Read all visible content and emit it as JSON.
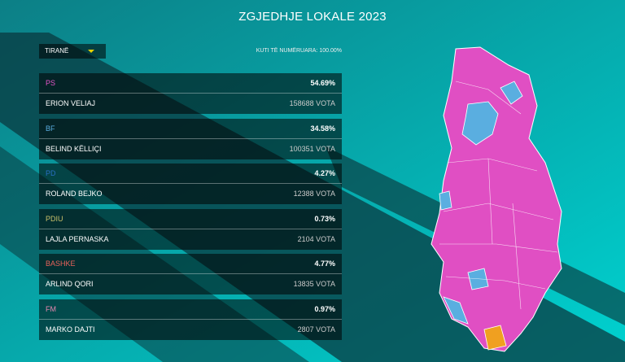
{
  "header": {
    "title": "ZGJEDHJE LOKALE 2023"
  },
  "filter": {
    "selected": "TIRANË"
  },
  "counted": "KUTI TË NUMËRUARA: 100.00%",
  "votes_unit": "VOTA",
  "results": [
    {
      "party": "PS",
      "color": "#e455c8",
      "percent": "54.69%",
      "candidate": "ERION VELIAJ",
      "votes": 158688
    },
    {
      "party": "BF",
      "color": "#5aaee0",
      "percent": "34.58%",
      "candidate": "BELIND KËLLIÇI",
      "votes": 100351
    },
    {
      "party": "PD",
      "color": "#2a6fc4",
      "percent": "4.27%",
      "candidate": "ROLAND BEJKO",
      "votes": 12388
    },
    {
      "party": "PDIU",
      "color": "#c9c06a",
      "percent": "0.73%",
      "candidate": "LAJLA PERNASKA",
      "votes": 2104
    },
    {
      "party": "BASHKE",
      "color": "#e8625a",
      "percent": "4.77%",
      "candidate": "ARLIND QORI",
      "votes": 13835
    },
    {
      "party": "FM",
      "color": "#e887b0",
      "percent": "0.97%",
      "candidate": "MARKO DAJTI",
      "votes": 2807
    }
  ]
}
